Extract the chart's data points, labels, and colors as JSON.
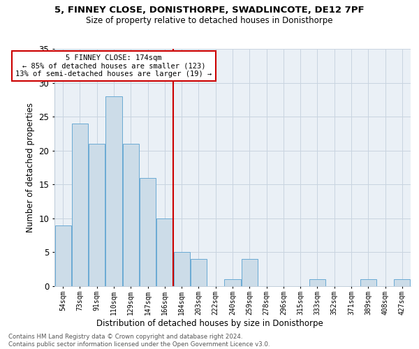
{
  "title1": "5, FINNEY CLOSE, DONISTHORPE, SWADLINCOTE, DE12 7PF",
  "title2": "Size of property relative to detached houses in Donisthorpe",
  "xlabel": "Distribution of detached houses by size in Donisthorpe",
  "ylabel": "Number of detached properties",
  "categories": [
    "54sqm",
    "73sqm",
    "91sqm",
    "110sqm",
    "129sqm",
    "147sqm",
    "166sqm",
    "184sqm",
    "203sqm",
    "222sqm",
    "240sqm",
    "259sqm",
    "278sqm",
    "296sqm",
    "315sqm",
    "333sqm",
    "352sqm",
    "371sqm",
    "389sqm",
    "408sqm",
    "427sqm"
  ],
  "values": [
    9,
    24,
    21,
    28,
    21,
    16,
    10,
    5,
    4,
    0,
    1,
    4,
    0,
    0,
    0,
    1,
    0,
    0,
    1,
    0,
    1
  ],
  "bar_color": "#ccdce8",
  "bar_edge_color": "#6aaad4",
  "grid_color": "#c8d4e0",
  "bg_color": "#eaf0f6",
  "vline_x": 6.5,
  "vline_color": "#cc0000",
  "annotation_text": "5 FINNEY CLOSE: 174sqm\n← 85% of detached houses are smaller (123)\n13% of semi-detached houses are larger (19) →",
  "annotation_box_color": "#ffffff",
  "annotation_box_edge": "#cc0000",
  "footer": "Contains HM Land Registry data © Crown copyright and database right 2024.\nContains public sector information licensed under the Open Government Licence v3.0.",
  "ylim": [
    0,
    35
  ],
  "yticks": [
    0,
    5,
    10,
    15,
    20,
    25,
    30,
    35
  ]
}
